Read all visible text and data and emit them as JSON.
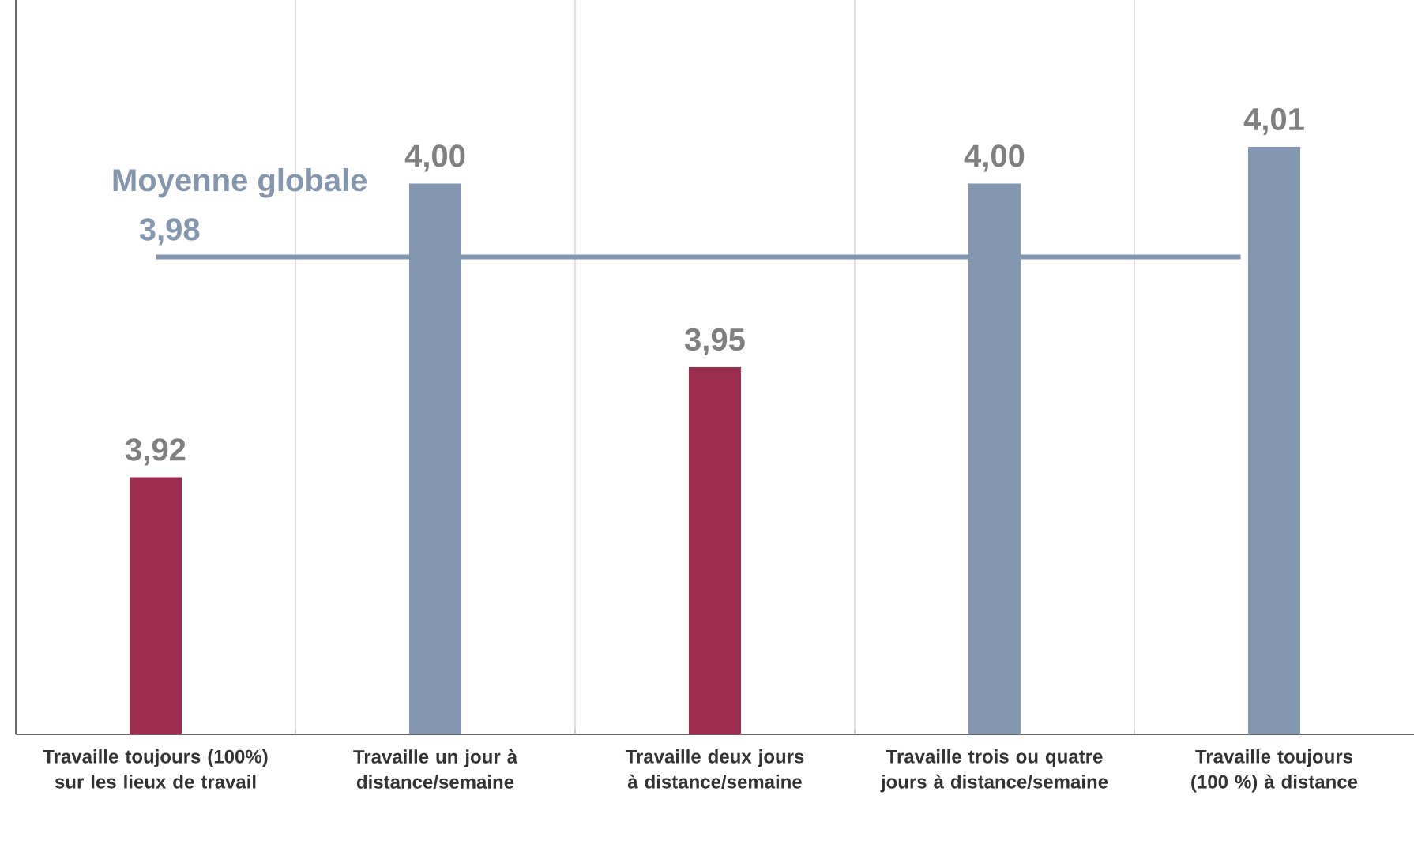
{
  "chart_data": {
    "type": "bar",
    "categories": [
      "Travaille toujours (100%) sur les lieux de travail",
      "Travaille un jour à distance/semaine",
      "Travaille deux jours à distance/semaine",
      "Travaille trois ou quatre jours à distance/semaine",
      "Travaille toujours (100 %) à distance"
    ],
    "values": [
      3.92,
      4.0,
      3.95,
      4.0,
      4.01
    ],
    "colors": [
      "#9b2d4f",
      "#8497b0",
      "#9b2d4f",
      "#8497b0",
      "#8497b0"
    ],
    "value_labels": [
      "3,92",
      "4,00",
      "3,95",
      "4,00",
      "4,01"
    ],
    "ylim": [
      3.85,
      4.05
    ],
    "tick_labels": "x",
    "grid": "x",
    "ref_lines": [
      {
        "axis": "y",
        "value": 3.98,
        "label": "Moyenne globale",
        "color": "#8497b0"
      }
    ],
    "annotations": [
      "3,98"
    ]
  }
}
